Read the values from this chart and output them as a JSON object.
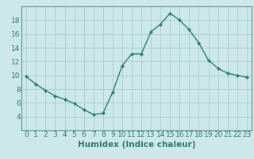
{
  "x": [
    0,
    1,
    2,
    3,
    4,
    5,
    6,
    7,
    8,
    9,
    10,
    11,
    12,
    13,
    14,
    15,
    16,
    17,
    18,
    19,
    20,
    21,
    22,
    23
  ],
  "y": [
    9.8,
    8.7,
    7.8,
    7.0,
    6.5,
    5.9,
    5.0,
    4.3,
    4.5,
    7.5,
    11.4,
    13.1,
    13.1,
    16.3,
    17.4,
    19.0,
    18.0,
    16.6,
    14.7,
    12.2,
    11.0,
    10.3,
    10.0,
    9.7
  ],
  "line_color": "#2e7d6e",
  "marker_color": "#2e7d6e",
  "bg_color": "#cce8e8",
  "grid_color": "#b0d0d0",
  "xlabel": "Humidex (Indice chaleur)",
  "ylim": [
    2,
    20
  ],
  "xlim": [
    -0.5,
    23.5
  ],
  "yticks": [
    4,
    6,
    8,
    10,
    12,
    14,
    16,
    18
  ],
  "xticks": [
    0,
    1,
    2,
    3,
    4,
    5,
    6,
    7,
    8,
    9,
    10,
    11,
    12,
    13,
    14,
    15,
    16,
    17,
    18,
    19,
    20,
    21,
    22,
    23
  ],
  "xlabel_fontsize": 7.5,
  "tick_fontsize": 6.5
}
